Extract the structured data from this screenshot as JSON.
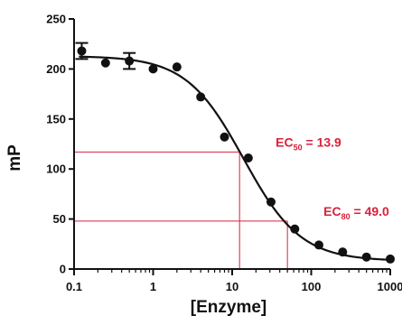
{
  "chart_data": {
    "type": "scatter",
    "xlabel": "[Enzyme]",
    "ylabel": "mP",
    "x_scale": "log",
    "xlim": [
      0.1,
      1000
    ],
    "ylim": [
      0,
      250
    ],
    "x_ticks": [
      {
        "value": 0.1,
        "label": "0.1"
      },
      {
        "value": 1,
        "label": "1"
      },
      {
        "value": 10,
        "label": "10"
      },
      {
        "value": 100,
        "label": "100"
      },
      {
        "value": 1000,
        "label": "1000"
      }
    ],
    "y_ticks": [
      {
        "value": 0,
        "label": "0"
      },
      {
        "value": 50,
        "label": "50"
      },
      {
        "value": 100,
        "label": "100"
      },
      {
        "value": 150,
        "label": "150"
      },
      {
        "value": 200,
        "label": "200"
      },
      {
        "value": 250,
        "label": "250"
      }
    ],
    "points": [
      {
        "x": 0.125,
        "y": 218,
        "err": 8
      },
      {
        "x": 0.25,
        "y": 206
      },
      {
        "x": 0.5,
        "y": 208,
        "err": 8
      },
      {
        "x": 1,
        "y": 200
      },
      {
        "x": 2,
        "y": 202
      },
      {
        "x": 4,
        "y": 172
      },
      {
        "x": 8,
        "y": 132
      },
      {
        "x": 16,
        "y": 111
      },
      {
        "x": 31,
        "y": 67
      },
      {
        "x": 62,
        "y": 40
      },
      {
        "x": 125,
        "y": 24
      },
      {
        "x": 250,
        "y": 17
      },
      {
        "x": 500,
        "y": 12
      },
      {
        "x": 1000,
        "y": 10
      }
    ],
    "fit": {
      "top": 213,
      "bottom": 8,
      "ec50": 13.9,
      "hill": 1.2
    },
    "annotations": [
      {
        "sub": "50",
        "text": "= 13.9",
        "x": 12.4,
        "y": 117
      },
      {
        "sub": "80",
        "text": "= 49.0",
        "x": 50,
        "y": 48
      }
    ],
    "grid": false,
    "colors": {
      "points": "#111111",
      "curve": "#111111",
      "annotation": "#d8213a"
    }
  }
}
